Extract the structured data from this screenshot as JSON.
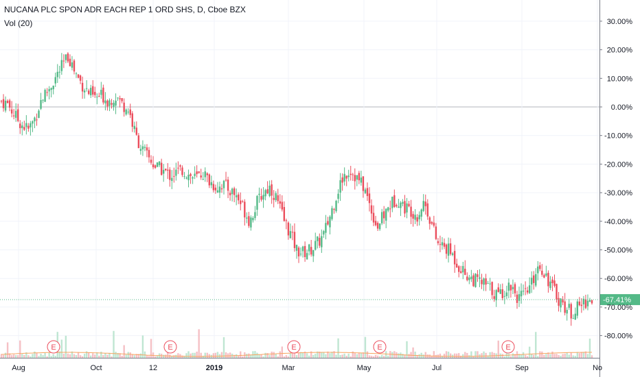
{
  "legend": {
    "title": "NUCANA PLC SPON ADR EACH REP 1 ORD SHS, D, Cboe BZX",
    "volume": "Vol (20)"
  },
  "colors": {
    "up": "#53b987",
    "down": "#eb4d5c",
    "vol_up": "#bfe6d2",
    "vol_down": "#f5c0c5",
    "vol_ma": "#f7a35c",
    "grid": "#f0f3fa",
    "zero": "#b2b5be",
    "last": "#53b987"
  },
  "chart_data": {
    "type": "candlestick",
    "title": "NUCANA PLC SPON ADR EACH REP 1 ORD SHS, D, Cboe BZX",
    "y_unit": "percent change",
    "y_ticks": [
      "30.00%",
      "20.00%",
      "10.00%",
      "0.00%",
      "-10.00%",
      "-20.00%",
      "-30.00%",
      "-40.00%",
      "-50.00%",
      "-60.00%",
      "-70.00%",
      "-80.00%"
    ],
    "y_tick_values": [
      30,
      20,
      10,
      0,
      -10,
      -20,
      -30,
      -40,
      -50,
      -60,
      -70,
      -80
    ],
    "x_ticks": [
      "Aug",
      "Oct",
      "12",
      "2019",
      "Mar",
      "May",
      "Jul",
      "Sep",
      "No"
    ],
    "x_tick_bold": [
      false,
      false,
      false,
      true,
      false,
      false,
      false,
      false,
      false
    ],
    "last_value": -67.41,
    "last_label": "-67.41%",
    "earnings_markers": [
      "E",
      "E",
      "E",
      "E",
      "E"
    ],
    "indicator": "Vol (20)",
    "series_path": [
      2,
      1,
      -3,
      -6,
      -8,
      -4,
      3,
      6,
      10,
      14,
      18,
      12,
      8,
      5,
      3,
      4,
      2,
      4,
      1,
      -1,
      -10,
      -15,
      -18,
      -21,
      -22,
      -24,
      -23,
      -22,
      -24,
      -25,
      -23,
      -26,
      -28,
      -27,
      -29,
      -31,
      -35,
      -40,
      -34,
      -30,
      -28,
      -32,
      -39,
      -44,
      -50,
      -51,
      -50,
      -48,
      -45,
      -38,
      -30,
      -24,
      -22,
      -25,
      -28,
      -35,
      -42,
      -38,
      -34,
      -32,
      -35,
      -36,
      -38,
      -33,
      -40,
      -48,
      -49,
      -51,
      -55,
      -58,
      -60,
      -61,
      -62,
      -64,
      -66,
      -64,
      -62,
      -67,
      -66,
      -62,
      -55,
      -58,
      -63,
      -67,
      -70,
      -72,
      -70,
      -68,
      -67.4
    ]
  }
}
